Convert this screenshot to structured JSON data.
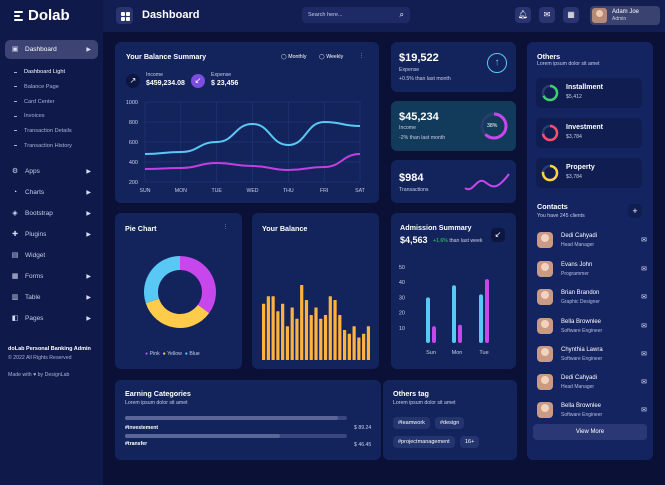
{
  "brand": {
    "name": "Dolab"
  },
  "sidebar": {
    "items": [
      {
        "label": "Dashboard",
        "icon": "home-icon"
      },
      {
        "label": "Apps",
        "icon": "apps-icon"
      },
      {
        "label": "Charts",
        "icon": "chart-icon"
      },
      {
        "label": "Bootstrap",
        "icon": "bootstrap-icon"
      },
      {
        "label": "Plugins",
        "icon": "plugin-icon"
      },
      {
        "label": "Widget",
        "icon": "widget-icon"
      },
      {
        "label": "Forms",
        "icon": "form-icon"
      },
      {
        "label": "Table",
        "icon": "table-icon"
      },
      {
        "label": "Pages",
        "icon": "pages-icon"
      }
    ],
    "subitems": [
      "Dashboard Light",
      "Balance Page",
      "Card Center",
      "Invoices",
      "Transaction Details",
      "Transaction History"
    ],
    "footer": {
      "title": "doLab Personal Banking Admin",
      "copyright": "© 2022 All Rights Reserved",
      "made": "Made with",
      "by": "by DesignLab"
    }
  },
  "header": {
    "title": "Dashboard",
    "search_placeholder": "Search here...",
    "user_name": "Adam Joe",
    "user_role": "Admin"
  },
  "balance": {
    "title": "Your Balance Summary",
    "legend_monthly": "Monthly",
    "legend_weekly": "Weekly",
    "income_label": "Income",
    "income_value": "$459,234.08",
    "expense_label": "Expense",
    "expense_value": "$ 23,456"
  },
  "chart_data": [
    {
      "type": "line",
      "title": "Your Balance Summary",
      "categories": [
        "SUN",
        "MON",
        "TUE",
        "WED",
        "THU",
        "FRI",
        "SAT"
      ],
      "yticks": [
        1000,
        800,
        600,
        400,
        200
      ],
      "ylim": [
        200,
        1000
      ],
      "series": [
        {
          "name": "Monthly",
          "color": "#5ac8f5",
          "values": [
            480,
            500,
            600,
            780,
            570,
            800,
            760
          ]
        },
        {
          "name": "Weekly",
          "color": "#c43fe0",
          "values": [
            330,
            340,
            390,
            360,
            320,
            350,
            480
          ]
        }
      ]
    },
    {
      "type": "pie",
      "title": "Pie Chart",
      "labels": [
        "Pink",
        "Yellow",
        "Blue"
      ],
      "values": [
        35,
        35,
        30
      ],
      "colors": [
        "#c847ec",
        "#ffcb4a",
        "#5ac8f5"
      ]
    },
    {
      "type": "bar",
      "title": "Your Balance",
      "values": [
        75,
        85,
        85,
        65,
        75,
        45,
        70,
        55,
        100,
        80,
        60,
        70,
        55,
        60,
        85,
        80,
        60,
        40,
        35,
        45,
        30,
        35,
        45
      ],
      "color": "#ffb23e"
    },
    {
      "type": "bar",
      "title": "Admission Summary",
      "categories": [
        "Sun",
        "Mon",
        "Tue"
      ],
      "yticks": [
        50,
        40,
        30,
        20,
        10
      ],
      "ylim": [
        0,
        50
      ],
      "series": [
        {
          "name": "A",
          "color": "#5ac8f5",
          "values": [
            30,
            38,
            32
          ]
        },
        {
          "name": "B",
          "color": "#c847ec",
          "values": [
            11,
            12,
            42
          ]
        }
      ]
    }
  ],
  "stat1": {
    "value": "$19,522",
    "label": "Expense",
    "note": "+0.5% than last month"
  },
  "stat2": {
    "value": "$45,234",
    "label": "Income",
    "note": "-2% than last month",
    "percent": "38%"
  },
  "stat3": {
    "value": "$984",
    "label": "Transactions"
  },
  "pie": {
    "title": "Pie Chart",
    "legend": [
      "Pink",
      "Yellow",
      "Blue"
    ]
  },
  "balance_bars": {
    "title": "Your Balance"
  },
  "admission": {
    "title": "Admission Summary",
    "value": "$4,563",
    "change": "+1.6%",
    "note": "than last week"
  },
  "earning": {
    "title": "Earning Categories",
    "subtitle": "Lorem ipsum dolor sit amet",
    "rows": [
      {
        "label": "#investement",
        "amount": "$ 89.24"
      },
      {
        "label": "#transfer",
        "amount": "$ 46.45"
      }
    ]
  },
  "tags": {
    "title": "Others tag",
    "subtitle": "Lorem ipsum dolor sit amet",
    "items": [
      "#teamwork",
      "#design",
      "#projectmanagement",
      "16+"
    ]
  },
  "others": {
    "title": "Others",
    "subtitle": "Lorem ipsum dolor sit amet",
    "items": [
      {
        "label": "Installment",
        "value": "$5,412",
        "color": "#3ecf6e"
      },
      {
        "label": "Investment",
        "value": "$3,784",
        "color": "#ff4d6d"
      },
      {
        "label": "Property",
        "value": "$3,784",
        "color": "#ffd23f"
      }
    ]
  },
  "contacts": {
    "title": "Contacts",
    "subtitle": "You have 245 clients",
    "people": [
      {
        "name": "Dedi Cahyadi",
        "role": "Head Manager"
      },
      {
        "name": "Evans John",
        "role": "Programmer"
      },
      {
        "name": "Brian Brandon",
        "role": "Graphic Designer"
      },
      {
        "name": "Bella Brownlee",
        "role": "Software Engineer"
      },
      {
        "name": "Chynthia Lawra",
        "role": "Software Engineer"
      },
      {
        "name": "Dedi Cahyadi",
        "role": "Head Manager"
      },
      {
        "name": "Bella Brownlee",
        "role": "Software Engineer"
      }
    ],
    "view_more": "View More"
  }
}
